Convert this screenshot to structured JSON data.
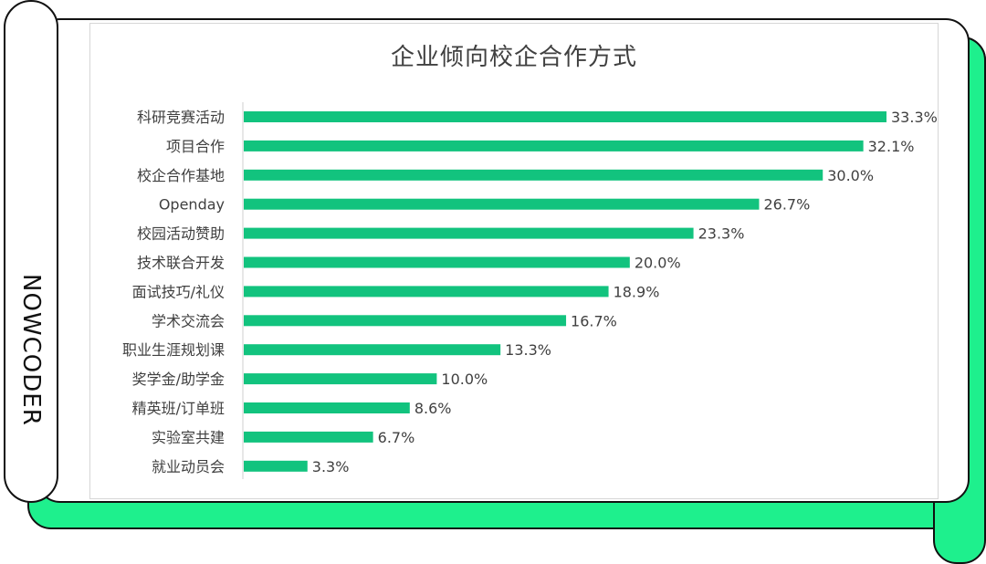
{
  "brand": "NOWCODER",
  "chart_data": {
    "type": "bar",
    "orientation": "horizontal",
    "title": "企业倾向校企合作方式",
    "categories": [
      "科研竞赛活动",
      "项目合作",
      "校企合作基地",
      "Openday",
      "校园活动赞助",
      "技术联合开发",
      "面试技巧/礼仪",
      "学术交流会",
      "职业生涯规划课",
      "奖学金/助学金",
      "精英班/订单班",
      "实验室共建",
      "就业动员会"
    ],
    "values": [
      33.3,
      32.1,
      30.0,
      26.7,
      23.3,
      20.0,
      18.9,
      16.7,
      13.3,
      10.0,
      8.6,
      6.7,
      3.3
    ],
    "value_labels": [
      "33.3%",
      "32.1%",
      "30.0%",
      "26.7%",
      "23.3%",
      "20.0%",
      "18.9%",
      "16.7%",
      "13.3%",
      "10.0%",
      "8.6%",
      "6.7%",
      "3.3%"
    ],
    "unit": "%",
    "xlim": [
      0,
      33.3
    ],
    "bar_color": "#12c37e",
    "grid": false,
    "legend": "none"
  }
}
